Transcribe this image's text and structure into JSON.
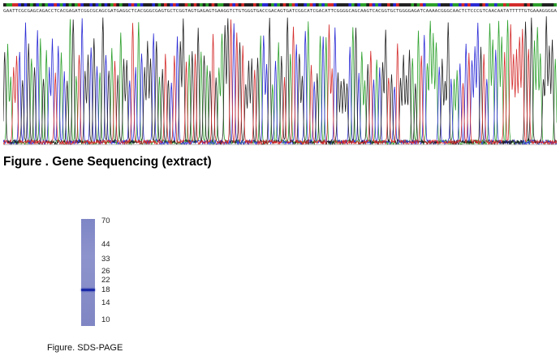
{
  "sequencing": {
    "caption": "Figure . Gene Sequencing (extract)",
    "bases": "GAATTCGCGAGCAGACCTCACGAGATCGGCGCAGCGATGAGGCTCACGGGCGAGTGCTCGGTAGTGAGAGTGAAGGTCTGTGGGTGACCGACAGTGATCGGCATCGACATTCGGGGCAGCAAGTCACGGTGCTGGGGAGATCAAAACGGGCAACTCTCCCGTCAACAATATTTTTGTGAAAGGGGA",
    "colors": {
      "A": "#2ca02c",
      "C": "#2b2bd6",
      "G": "#222222",
      "T": "#d42a2a"
    }
  },
  "sds_page": {
    "caption": "Figure. SDS-PAGE",
    "lane_color": "#8a90ca",
    "band_color": "#1b2aa8",
    "markers": [
      {
        "label": "70",
        "kda": 70
      },
      {
        "label": "44",
        "kda": 44
      },
      {
        "label": "33",
        "kda": 33
      },
      {
        "label": "26",
        "kda": 26
      },
      {
        "label": "22",
        "kda": 22
      },
      {
        "label": "18",
        "kda": 18
      },
      {
        "label": "14",
        "kda": 14
      },
      {
        "label": "10",
        "kda": 10
      }
    ],
    "band_kda": 18
  }
}
